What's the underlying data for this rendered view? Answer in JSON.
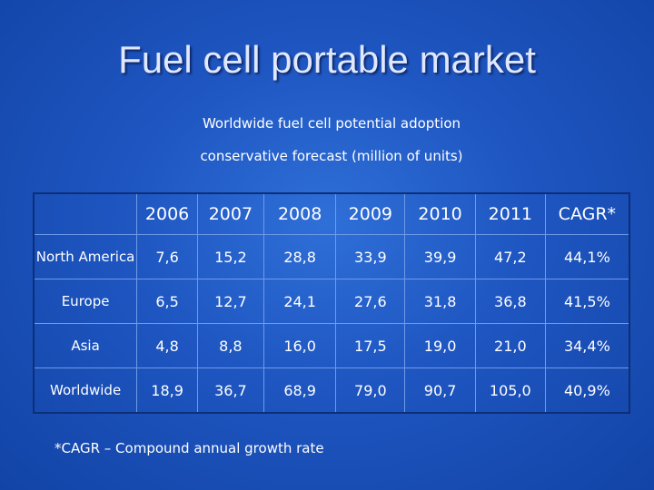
{
  "title": "Fuel cell portable market",
  "subtitle_line1": "Worldwide fuel cell potential adoption",
  "subtitle_line2": "conservative forecast (million of units)",
  "table": {
    "corner": "",
    "headers": [
      "2006",
      "2007",
      "2008",
      "2009",
      "2010",
      "2011",
      "CAGR*"
    ],
    "rows": [
      {
        "label": "North America",
        "values": [
          "7,6",
          "15,2",
          "28,8",
          "33,9",
          "39,9",
          "47,2",
          "44,1%"
        ]
      },
      {
        "label": "Europe",
        "values": [
          "6,5",
          "12,7",
          "24,1",
          "27,6",
          "31,8",
          "36,8",
          "41,5%"
        ]
      },
      {
        "label": "Asia",
        "values": [
          "4,8",
          "8,8",
          "16,0",
          "17,5",
          "19,0",
          "21,0",
          "34,4%"
        ]
      },
      {
        "label": "Worldwide",
        "values": [
          "18,9",
          "36,7",
          "68,9",
          "79,0",
          "90,7",
          "105,0",
          "40,9%"
        ]
      }
    ]
  },
  "footnote": "*CAGR – Compound annual growth rate"
}
